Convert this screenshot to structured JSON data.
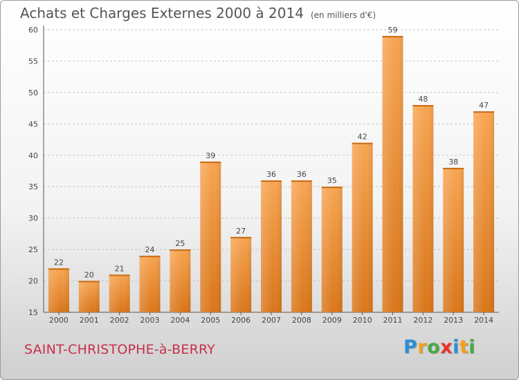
{
  "chart_data": {
    "type": "bar",
    "title": "Achats et Charges Externes 2000 à 2014",
    "subtitle": "(en milliers d'€)",
    "categories": [
      "2000",
      "2001",
      "2002",
      "2003",
      "2004",
      "2005",
      "2006",
      "2007",
      "2008",
      "2009",
      "2010",
      "2011",
      "2012",
      "2013",
      "2014"
    ],
    "values": [
      22,
      20,
      21,
      24,
      25,
      39,
      27,
      36,
      36,
      35,
      42,
      59,
      48,
      38,
      47
    ],
    "ylim": [
      15,
      60
    ],
    "yticks": [
      15,
      20,
      25,
      30,
      35,
      40,
      45,
      50,
      55,
      60
    ],
    "grid": "horizontal dashed",
    "legend": "none",
    "bar_color": "#f0922e"
  },
  "footer": {
    "city": "SAINT-CHRISTOPHE-à-BERRY"
  },
  "brand": {
    "logo_letters": [
      "P",
      "r",
      "o",
      "x",
      "i",
      "t",
      "i"
    ],
    "logo_colors": [
      "#2a8fd6",
      "#f0a020",
      "#49a942",
      "#e8342d",
      "#2a8fd6",
      "#f0a020",
      "#49a942"
    ]
  }
}
